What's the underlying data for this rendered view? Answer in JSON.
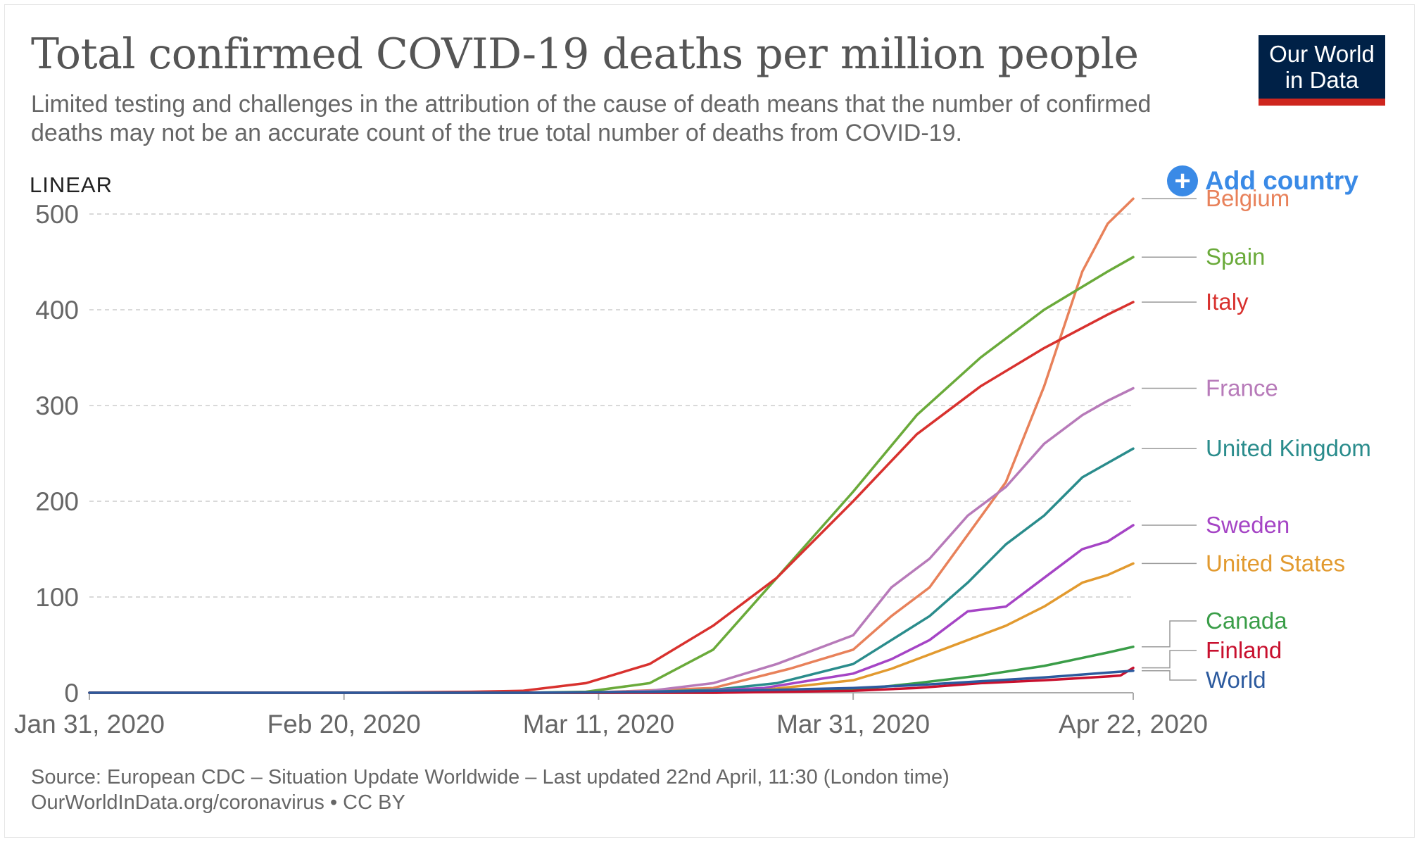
{
  "header": {
    "title": "Total confirmed COVID-19 deaths per million people",
    "subtitle": "Limited testing and challenges in the attribution of the cause of death means that the number of confirmed deaths may not be an accurate count of the true total number of deaths from COVID-19."
  },
  "logo": {
    "line1": "Our World",
    "line2": "in Data"
  },
  "controls": {
    "scale_label": "LINEAR",
    "add_country_label": "Add country"
  },
  "footer": {
    "source": "Source: European CDC – Situation Update Worldwide – Last updated 22nd April, 11:30 (London time)",
    "license": "OurWorldInData.org/coronavirus • CC BY"
  },
  "chart_data": {
    "type": "line",
    "title": "Total confirmed COVID-19 deaths per million people",
    "xlabel": "",
    "ylabel": "",
    "x_range": [
      "2020-01-31",
      "2020-04-22"
    ],
    "ylim": [
      0,
      500
    ],
    "y_ticks": [
      0,
      100,
      200,
      300,
      400,
      500
    ],
    "x_tick_labels": [
      "Jan 31, 2020",
      "Feb 20, 2020",
      "Mar 11, 2020",
      "Mar 31, 2020",
      "Apr 22, 2020"
    ],
    "x_tick_dates": [
      "2020-01-31",
      "2020-02-20",
      "2020-03-11",
      "2020-03-31",
      "2020-04-22"
    ],
    "grid": "horizontal-dashed",
    "legend": "right-end-labels",
    "series": [
      {
        "name": "Belgium",
        "color": "#e8815a",
        "x": [
          "2020-01-31",
          "2020-03-10",
          "2020-03-20",
          "2020-03-26",
          "2020-03-31",
          "2020-04-03",
          "2020-04-06",
          "2020-04-09",
          "2020-04-12",
          "2020-04-15",
          "2020-04-18",
          "2020-04-20",
          "2020-04-22"
        ],
        "y": [
          0,
          0,
          5,
          25,
          45,
          80,
          110,
          165,
          220,
          320,
          440,
          490,
          516
        ]
      },
      {
        "name": "Spain",
        "color": "#6aaa3a",
        "x": [
          "2020-01-31",
          "2020-03-05",
          "2020-03-10",
          "2020-03-15",
          "2020-03-20",
          "2020-03-25",
          "2020-03-31",
          "2020-04-05",
          "2020-04-10",
          "2020-04-15",
          "2020-04-20",
          "2020-04-22"
        ],
        "y": [
          0,
          0,
          1,
          10,
          45,
          120,
          210,
          290,
          350,
          400,
          440,
          455
        ]
      },
      {
        "name": "Italy",
        "color": "#d8312e",
        "x": [
          "2020-01-31",
          "2020-02-21",
          "2020-03-01",
          "2020-03-05",
          "2020-03-10",
          "2020-03-15",
          "2020-03-20",
          "2020-03-25",
          "2020-03-31",
          "2020-04-05",
          "2020-04-10",
          "2020-04-15",
          "2020-04-20",
          "2020-04-22"
        ],
        "y": [
          0,
          0,
          1,
          2,
          10,
          30,
          70,
          120,
          200,
          270,
          320,
          360,
          395,
          408
        ]
      },
      {
        "name": "France",
        "color": "#b77ab9",
        "x": [
          "2020-01-31",
          "2020-03-10",
          "2020-03-15",
          "2020-03-20",
          "2020-03-25",
          "2020-03-31",
          "2020-04-03",
          "2020-04-06",
          "2020-04-09",
          "2020-04-12",
          "2020-04-15",
          "2020-04-18",
          "2020-04-20",
          "2020-04-22"
        ],
        "y": [
          0,
          0,
          2,
          10,
          30,
          60,
          110,
          140,
          185,
          215,
          260,
          290,
          305,
          318
        ]
      },
      {
        "name": "United Kingdom",
        "color": "#2a8c8c",
        "x": [
          "2020-01-31",
          "2020-03-10",
          "2020-03-15",
          "2020-03-20",
          "2020-03-25",
          "2020-03-31",
          "2020-04-03",
          "2020-04-06",
          "2020-04-09",
          "2020-04-12",
          "2020-04-15",
          "2020-04-18",
          "2020-04-20",
          "2020-04-22"
        ],
        "y": [
          0,
          0,
          1,
          3,
          10,
          30,
          55,
          80,
          115,
          155,
          185,
          225,
          240,
          255
        ]
      },
      {
        "name": "Sweden",
        "color": "#a544c5",
        "x": [
          "2020-01-31",
          "2020-03-12",
          "2020-03-18",
          "2020-03-24",
          "2020-03-31",
          "2020-04-03",
          "2020-04-06",
          "2020-04-09",
          "2020-04-12",
          "2020-04-15",
          "2020-04-18",
          "2020-04-20",
          "2020-04-22"
        ],
        "y": [
          0,
          0,
          1,
          5,
          20,
          35,
          55,
          85,
          90,
          120,
          150,
          158,
          175
        ]
      },
      {
        "name": "United States",
        "color": "#e29a2f",
        "x": [
          "2020-01-31",
          "2020-03-12",
          "2020-03-18",
          "2020-03-24",
          "2020-03-31",
          "2020-04-03",
          "2020-04-06",
          "2020-04-09",
          "2020-04-12",
          "2020-04-15",
          "2020-04-18",
          "2020-04-20",
          "2020-04-22"
        ],
        "y": [
          0,
          0,
          1,
          3,
          13,
          25,
          40,
          55,
          70,
          90,
          115,
          123,
          135
        ]
      },
      {
        "name": "Canada",
        "color": "#3a9d48",
        "x": [
          "2020-01-31",
          "2020-03-20",
          "2020-03-31",
          "2020-04-05",
          "2020-04-10",
          "2020-04-15",
          "2020-04-20",
          "2020-04-22"
        ],
        "y": [
          0,
          0,
          3,
          10,
          18,
          28,
          42,
          48
        ]
      },
      {
        "name": "Finland",
        "color": "#c8102e",
        "x": [
          "2020-01-31",
          "2020-03-20",
          "2020-03-31",
          "2020-04-05",
          "2020-04-10",
          "2020-04-15",
          "2020-04-20",
          "2020-04-21",
          "2020-04-22"
        ],
        "y": [
          0,
          0,
          2,
          5,
          10,
          13,
          17,
          18,
          26
        ]
      },
      {
        "name": "World",
        "color": "#2c5a9e",
        "x": [
          "2020-01-31",
          "2020-03-05",
          "2020-03-15",
          "2020-03-25",
          "2020-03-31",
          "2020-04-05",
          "2020-04-10",
          "2020-04-15",
          "2020-04-20",
          "2020-04-22"
        ],
        "y": [
          0,
          0,
          1,
          3,
          5,
          8,
          12,
          16,
          21,
          23
        ]
      }
    ]
  }
}
